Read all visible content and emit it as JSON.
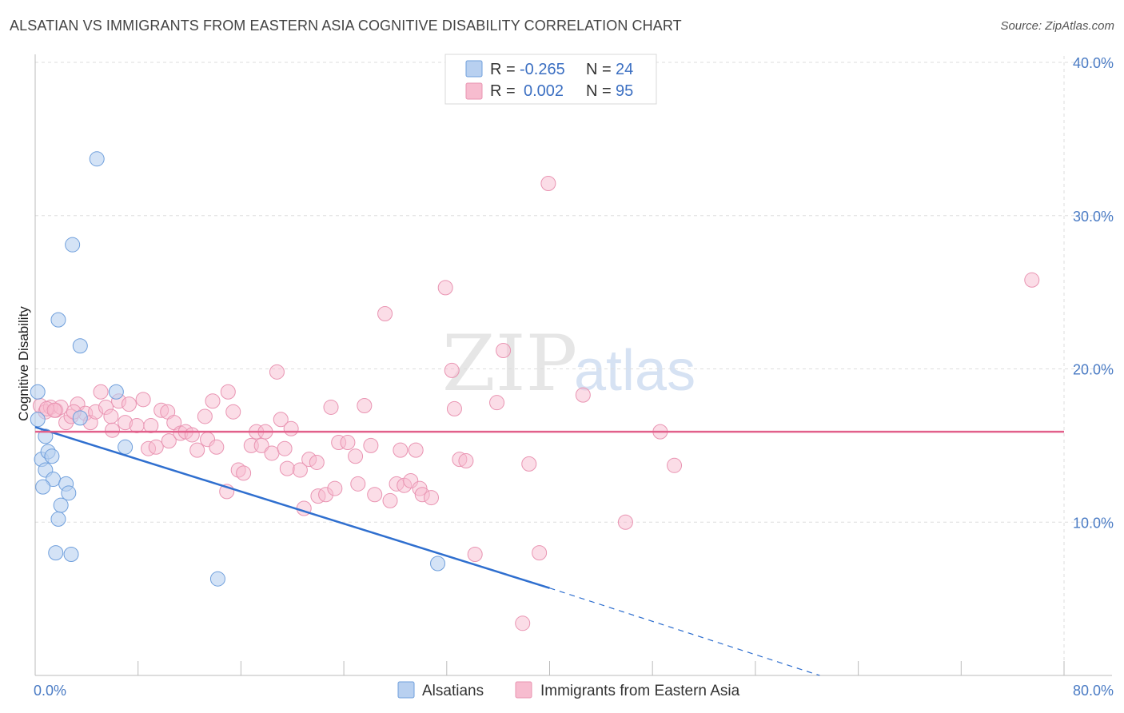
{
  "title": "ALSATIAN VS IMMIGRANTS FROM EASTERN ASIA COGNITIVE DISABILITY CORRELATION CHART",
  "source": "Source: ZipAtlas.com",
  "watermark": {
    "zip": "ZIP",
    "atlas": "atlas"
  },
  "colors": {
    "blue_fill": "#b8d0f0",
    "blue_stroke": "#6f9fdc",
    "blue_line": "#2f6fcf",
    "pink_fill": "#f7bccf",
    "pink_stroke": "#e994b2",
    "pink_line": "#e2608b",
    "grid": "#dddddd",
    "axis_text": "#4a7bc4"
  },
  "legend": {
    "rows": [
      {
        "r_label": "R =",
        "r_value": "-0.265",
        "n_label": "N =",
        "n_value": "24"
      },
      {
        "r_label": "R =",
        "r_value": "0.002",
        "n_label": "N =",
        "n_value": "95"
      }
    ]
  },
  "bottom_legend": {
    "series1": "Alsatians",
    "series2": "Immigrants from Eastern Asia"
  },
  "chart_data": {
    "type": "scatter",
    "title": "ALSATIAN VS IMMIGRANTS FROM EASTERN ASIA COGNITIVE DISABILITY CORRELATION CHART",
    "xlabel": "",
    "ylabel": "Cognitive Disability",
    "xlim": [
      0,
      80
    ],
    "ylim": [
      0,
      40
    ],
    "x_tick_labels": [
      "0.0%",
      "80.0%"
    ],
    "y_ticks": [
      10,
      20,
      30,
      40
    ],
    "y_tick_labels": [
      "10.0%",
      "20.0%",
      "30.0%",
      "40.0%"
    ],
    "grid": true,
    "legend_position": "top-center",
    "series": [
      {
        "name": "Alsatians",
        "color": "#b8d0f0",
        "points": [
          [
            0.2,
            18.5
          ],
          [
            0.2,
            16.7
          ],
          [
            0.8,
            15.6
          ],
          [
            0.5,
            14.1
          ],
          [
            1.0,
            14.6
          ],
          [
            1.3,
            14.3
          ],
          [
            0.8,
            13.4
          ],
          [
            1.4,
            12.8
          ],
          [
            0.6,
            12.3
          ],
          [
            2.4,
            12.5
          ],
          [
            2.6,
            11.9
          ],
          [
            2.0,
            11.1
          ],
          [
            1.8,
            10.2
          ],
          [
            1.6,
            8.0
          ],
          [
            2.8,
            7.9
          ],
          [
            3.5,
            16.8
          ],
          [
            6.3,
            18.5
          ],
          [
            7.0,
            14.9
          ],
          [
            4.8,
            33.7
          ],
          [
            2.9,
            28.1
          ],
          [
            1.8,
            23.2
          ],
          [
            3.5,
            21.5
          ],
          [
            14.2,
            6.3
          ],
          [
            31.3,
            7.3
          ]
        ],
        "trend": {
          "x": [
            0,
            40
          ],
          "y": [
            16.2,
            5.7
          ],
          "dashed_to": [
            61,
            0
          ]
        }
      },
      {
        "name": "Immigrants from Eastern Asia",
        "color": "#f7bccf",
        "points": [
          [
            0.4,
            17.6
          ],
          [
            0.8,
            17.2
          ],
          [
            1.2,
            17.5
          ],
          [
            1.6,
            17.3
          ],
          [
            2.0,
            17.5
          ],
          [
            2.4,
            16.5
          ],
          [
            2.8,
            16.9
          ],
          [
            3.3,
            17.7
          ],
          [
            3.9,
            17.1
          ],
          [
            4.3,
            16.5
          ],
          [
            4.7,
            17.2
          ],
          [
            5.1,
            18.5
          ],
          [
            5.5,
            17.5
          ],
          [
            5.9,
            16.9
          ],
          [
            6.5,
            17.9
          ],
          [
            7.0,
            16.5
          ],
          [
            7.3,
            17.7
          ],
          [
            7.9,
            16.3
          ],
          [
            8.4,
            18.0
          ],
          [
            8.8,
            14.8
          ],
          [
            9.4,
            14.9
          ],
          [
            9.8,
            17.3
          ],
          [
            10.3,
            17.2
          ],
          [
            10.4,
            15.3
          ],
          [
            10.8,
            16.5
          ],
          [
            11.3,
            15.8
          ],
          [
            11.7,
            15.9
          ],
          [
            12.2,
            15.7
          ],
          [
            12.6,
            14.7
          ],
          [
            13.2,
            16.9
          ],
          [
            13.4,
            15.4
          ],
          [
            13.8,
            17.9
          ],
          [
            14.1,
            14.9
          ],
          [
            14.9,
            12.0
          ],
          [
            15.0,
            18.5
          ],
          [
            15.4,
            17.2
          ],
          [
            15.8,
            13.4
          ],
          [
            16.2,
            13.2
          ],
          [
            16.8,
            15.0
          ],
          [
            17.2,
            15.9
          ],
          [
            17.6,
            15.0
          ],
          [
            17.9,
            15.9
          ],
          [
            18.4,
            14.5
          ],
          [
            18.8,
            19.8
          ],
          [
            19.1,
            16.7
          ],
          [
            19.4,
            14.8
          ],
          [
            19.6,
            13.5
          ],
          [
            19.9,
            16.1
          ],
          [
            20.6,
            13.4
          ],
          [
            20.9,
            10.9
          ],
          [
            21.3,
            14.1
          ],
          [
            21.9,
            13.9
          ],
          [
            22.0,
            11.7
          ],
          [
            22.6,
            11.8
          ],
          [
            23.0,
            17.5
          ],
          [
            23.3,
            12.2
          ],
          [
            23.6,
            15.2
          ],
          [
            24.3,
            15.2
          ],
          [
            24.9,
            14.3
          ],
          [
            25.1,
            12.5
          ],
          [
            25.6,
            17.6
          ],
          [
            26.1,
            15.0
          ],
          [
            26.4,
            11.8
          ],
          [
            27.2,
            23.6
          ],
          [
            27.6,
            11.4
          ],
          [
            28.1,
            12.5
          ],
          [
            28.4,
            14.7
          ],
          [
            28.7,
            12.4
          ],
          [
            29.2,
            12.7
          ],
          [
            29.6,
            14.7
          ],
          [
            29.9,
            12.2
          ],
          [
            30.1,
            11.8
          ],
          [
            30.8,
            11.6
          ],
          [
            31.9,
            25.3
          ],
          [
            32.4,
            19.9
          ],
          [
            32.6,
            17.4
          ],
          [
            33.0,
            14.1
          ],
          [
            33.5,
            14.0
          ],
          [
            34.2,
            7.9
          ],
          [
            35.9,
            17.8
          ],
          [
            36.4,
            21.2
          ],
          [
            37.9,
            3.4
          ],
          [
            38.4,
            13.8
          ],
          [
            39.2,
            8.0
          ],
          [
            39.9,
            32.1
          ],
          [
            42.6,
            18.3
          ],
          [
            45.9,
            10.0
          ],
          [
            48.6,
            15.9
          ],
          [
            49.7,
            13.7
          ],
          [
            77.5,
            25.8
          ],
          [
            0.9,
            17.4
          ],
          [
            1.5,
            17.3
          ],
          [
            3.0,
            17.2
          ],
          [
            6.0,
            16.0
          ],
          [
            9.0,
            16.3
          ]
        ],
        "trend": {
          "x": [
            0,
            80
          ],
          "y": [
            15.9,
            15.9
          ]
        }
      }
    ]
  }
}
